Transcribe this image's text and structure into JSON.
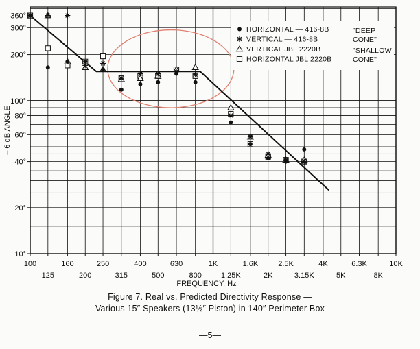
{
  "chart_data": {
    "type": "scatter",
    "x_scale": "log",
    "y_scale": "log",
    "xlim": [
      100,
      10000
    ],
    "ylim": [
      10,
      360
    ],
    "xlabel": "FREQUENCY, Hz",
    "ylabel": "– 6 dB ANGLE",
    "x_ticks": [
      100,
      125,
      160,
      200,
      250,
      315,
      400,
      500,
      630,
      800,
      1000,
      1250,
      1600,
      2000,
      2500,
      3150,
      4000,
      5000,
      6300,
      8000,
      10000
    ],
    "x_tick_labels": [
      "100",
      "125",
      "160",
      "200",
      "250",
      "315",
      "400",
      "500",
      "630",
      "800",
      "1K",
      "1.25K",
      "1.6K",
      "2K",
      "2.5K",
      "3.15K",
      "4K",
      "5K",
      "6.3K",
      "8K",
      "10K"
    ],
    "y_ticks": [
      10,
      20,
      40,
      60,
      80,
      100,
      200,
      300,
      360
    ],
    "y_tick_labels": [
      "10°",
      "20°",
      "40°",
      "60°",
      "80°",
      "100°",
      "200°",
      "300°",
      "360°"
    ],
    "grid": true,
    "legend_position": "top-right",
    "series": [
      {
        "name": "HORIZONTAL — 416-8B",
        "marker": "filled-circle",
        "x": [
          100,
          125,
          160,
          200,
          250,
          315,
          400,
          500,
          630,
          800,
          1250,
          1600,
          2000,
          2500,
          3150
        ],
        "y": [
          360,
          165,
          180,
          180,
          160,
          118,
          128,
          132,
          150,
          132,
          72,
          52,
          42,
          40,
          48
        ]
      },
      {
        "name": "VERTICAL — 416-8B",
        "marker": "asterisk",
        "x": [
          100,
          125,
          160,
          200,
          250,
          315,
          400,
          500,
          630,
          800,
          1250,
          1600,
          2000,
          2500,
          3150
        ],
        "y": [
          360,
          360,
          360,
          170,
          175,
          140,
          150,
          150,
          155,
          148,
          80,
          58,
          45,
          41,
          40
        ]
      },
      {
        "name": "VERTICAL JBL 2220B",
        "marker": "open-triangle",
        "x": [
          125,
          160,
          200,
          250,
          315,
          400,
          500,
          630,
          800,
          1250,
          1600,
          2000,
          2500,
          3150
        ],
        "y": [
          360,
          180,
          165,
          160,
          138,
          140,
          145,
          160,
          165,
          90,
          58,
          44,
          41,
          41
        ]
      },
      {
        "name": "HORIZONTAL JBL 2220B",
        "marker": "open-square",
        "x": [
          100,
          125,
          160,
          200,
          250,
          315,
          400,
          500,
          630,
          800,
          1250,
          1600,
          2000,
          2500,
          3150
        ],
        "y": [
          360,
          220,
          170,
          180,
          195,
          140,
          145,
          145,
          160,
          145,
          82,
          52,
          43,
          41,
          40
        ]
      }
    ],
    "legend_notes": [
      "\"DEEP",
      "CONE\"",
      "\"SHALLOW",
      "CONE\""
    ],
    "predicted_line": {
      "x": [
        100,
        230,
        850,
        4300
      ],
      "y": [
        360,
        155,
        155,
        26
      ]
    },
    "annotation": {
      "shape": "ellipse",
      "color": "#e08070",
      "x_range": [
        265,
        1300
      ],
      "y_range": [
        90,
        290
      ]
    },
    "caption": [
      "Figure 7. Real vs. Predicted Directivity Response —",
      "Various 15″ Speakers (13½″ Piston) in 140″ Perimeter Box"
    ]
  },
  "page_number": "—5—"
}
